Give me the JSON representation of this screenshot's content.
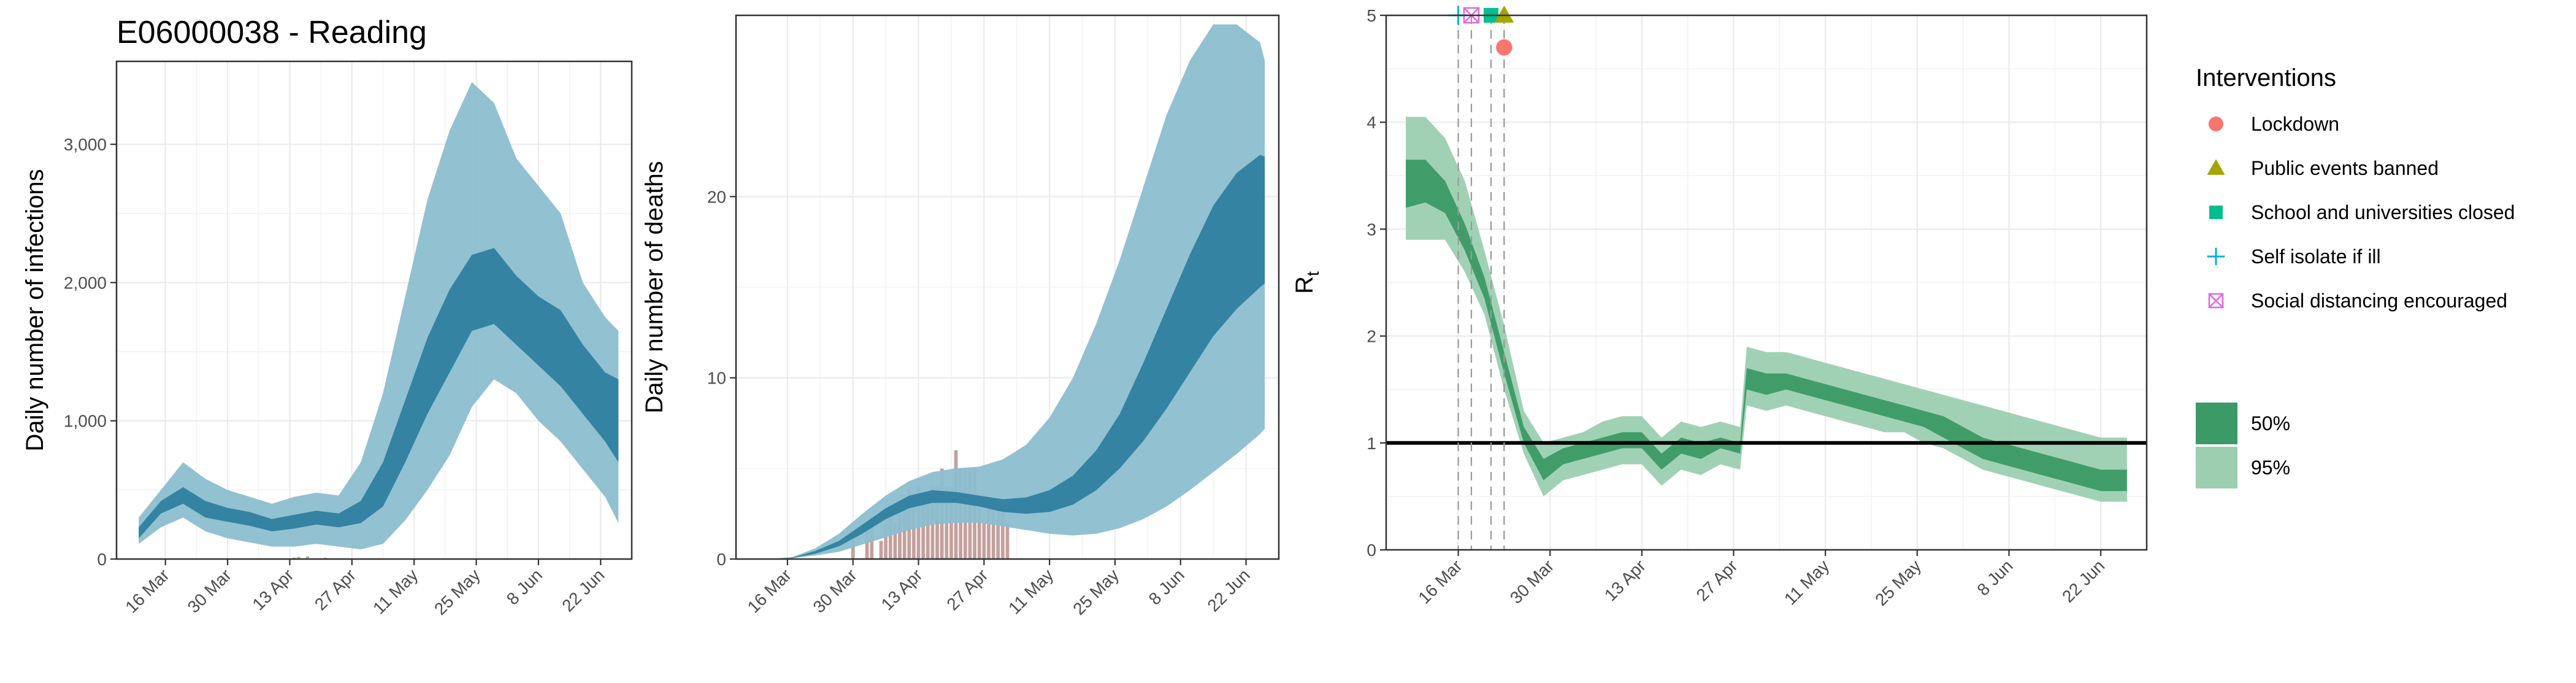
{
  "chart_data": [
    {
      "type": "area",
      "title": "E06000038 - Reading",
      "xlabel": "",
      "ylabel": "Daily number of infections",
      "ylim": [
        0,
        3600
      ],
      "yticks": [
        0,
        1000,
        2000,
        3000
      ],
      "ytick_labels": [
        "0",
        "1,000",
        "2,000",
        "3,000"
      ],
      "xticks": [
        "2020-03-16",
        "2020-03-30",
        "2020-04-13",
        "2020-04-27",
        "2020-05-11",
        "2020-05-25",
        "2020-06-08",
        "2020-06-22"
      ],
      "xtick_labels": [
        "16 Mar",
        "30 Mar",
        "13 Apr",
        "27 Apr",
        "11 May",
        "25 May",
        "8 Jun",
        "22 Jun"
      ],
      "xlim": [
        "2020-03-05",
        "2020-06-29"
      ],
      "grid": true,
      "band_colors": {
        "ci50": "#2f7fa0",
        "ci95": "#8cbecf"
      },
      "x": [
        "2020-03-10",
        "2020-03-15",
        "2020-03-20",
        "2020-03-25",
        "2020-03-30",
        "2020-04-04",
        "2020-04-09",
        "2020-04-14",
        "2020-04-19",
        "2020-04-24",
        "2020-04-29",
        "2020-05-04",
        "2020-05-09",
        "2020-05-14",
        "2020-05-19",
        "2020-05-24",
        "2020-05-29",
        "2020-06-03",
        "2020-06-08",
        "2020-06-13",
        "2020-06-18",
        "2020-06-23",
        "2020-06-26"
      ],
      "series": [
        {
          "band": "95%",
          "lower": [
            110,
            230,
            300,
            200,
            150,
            120,
            90,
            90,
            110,
            90,
            70,
            110,
            280,
            500,
            750,
            1100,
            1300,
            1200,
            1000,
            850,
            650,
            450,
            260
          ],
          "upper": [
            300,
            500,
            700,
            580,
            500,
            450,
            400,
            450,
            480,
            460,
            700,
            1200,
            1900,
            2600,
            3100,
            3450,
            3300,
            2900,
            2700,
            2500,
            2000,
            1750,
            1650
          ]
        },
        {
          "band": "50%",
          "lower": [
            150,
            330,
            400,
            300,
            270,
            240,
            200,
            220,
            250,
            230,
            260,
            380,
            700,
            1050,
            1350,
            1650,
            1700,
            1550,
            1400,
            1250,
            1050,
            850,
            700
          ],
          "upper": [
            230,
            420,
            520,
            420,
            370,
            340,
            290,
            320,
            350,
            330,
            420,
            700,
            1150,
            1600,
            1950,
            2200,
            2250,
            2050,
            1900,
            1800,
            1550,
            1350,
            1300
          ]
        }
      ],
      "bars": [
        {
          "x": "2020-04-14",
          "value": 10
        },
        {
          "x": "2020-04-15",
          "value": 15
        },
        {
          "x": "2020-04-17",
          "value": 20
        },
        {
          "x": "2020-04-21",
          "value": 10
        }
      ]
    },
    {
      "type": "area",
      "title": "",
      "xlabel": "",
      "ylabel": "Daily number of deaths",
      "ylim": [
        0,
        30
      ],
      "yticks": [
        0,
        10,
        20
      ],
      "ytick_labels": [
        "0",
        "10",
        "20"
      ],
      "xticks": [
        "2020-03-16",
        "2020-03-30",
        "2020-04-13",
        "2020-04-27",
        "2020-05-11",
        "2020-05-25",
        "2020-06-08",
        "2020-06-22"
      ],
      "xtick_labels": [
        "16 Mar",
        "30 Mar",
        "13 Apr",
        "27 Apr",
        "11 May",
        "25 May",
        "8 Jun",
        "22 Jun"
      ],
      "xlim": [
        "2020-03-05",
        "2020-06-29"
      ],
      "grid": true,
      "band_colors": {
        "ci50": "#2f7fa0",
        "ci95": "#8cbecf",
        "bars": "#c4a09d"
      },
      "x": [
        "2020-03-12",
        "2020-03-17",
        "2020-03-22",
        "2020-03-27",
        "2020-04-01",
        "2020-04-06",
        "2020-04-11",
        "2020-04-16",
        "2020-04-21",
        "2020-04-26",
        "2020-05-01",
        "2020-05-06",
        "2020-05-11",
        "2020-05-16",
        "2020-05-21",
        "2020-05-26",
        "2020-05-31",
        "2020-06-05",
        "2020-06-10",
        "2020-06-15",
        "2020-06-20",
        "2020-06-25",
        "2020-06-26"
      ],
      "series": [
        {
          "band": "95%",
          "lower": [
            0,
            0.05,
            0.2,
            0.4,
            0.8,
            1.2,
            1.6,
            1.9,
            2.0,
            2.0,
            1.8,
            1.6,
            1.4,
            1.3,
            1.4,
            1.7,
            2.2,
            2.9,
            3.8,
            4.8,
            5.8,
            6.9,
            7.2
          ],
          "upper": [
            0,
            0.1,
            0.6,
            1.4,
            2.5,
            3.5,
            4.3,
            4.8,
            5.0,
            5.1,
            5.5,
            6.3,
            7.8,
            10.0,
            13.0,
            16.5,
            20.5,
            24.5,
            27.5,
            29.5,
            29.5,
            28.5,
            27.5
          ]
        },
        {
          "band": "50%",
          "lower": [
            0,
            0.05,
            0.3,
            0.7,
            1.4,
            2.2,
            2.8,
            3.1,
            3.1,
            2.9,
            2.6,
            2.5,
            2.6,
            3.0,
            3.8,
            5.0,
            6.5,
            8.3,
            10.3,
            12.3,
            13.8,
            15.0,
            15.2
          ],
          "upper": [
            0,
            0.08,
            0.45,
            1.0,
            1.9,
            2.8,
            3.5,
            3.8,
            3.7,
            3.5,
            3.3,
            3.4,
            3.8,
            4.6,
            6.0,
            8.0,
            10.8,
            13.8,
            16.8,
            19.5,
            21.3,
            22.3,
            22.2
          ]
        }
      ],
      "bars": [
        {
          "x": "2020-03-30",
          "value": 1
        },
        {
          "x": "2020-04-02",
          "value": 2
        },
        {
          "x": "2020-04-03",
          "value": 2
        },
        {
          "x": "2020-04-05",
          "value": 1
        },
        {
          "x": "2020-04-06",
          "value": 2
        },
        {
          "x": "2020-04-07",
          "value": 3
        },
        {
          "x": "2020-04-08",
          "value": 2
        },
        {
          "x": "2020-04-09",
          "value": 3
        },
        {
          "x": "2020-04-10",
          "value": 3
        },
        {
          "x": "2020-04-11",
          "value": 4
        },
        {
          "x": "2020-04-12",
          "value": 3
        },
        {
          "x": "2020-04-13",
          "value": 4
        },
        {
          "x": "2020-04-14",
          "value": 3
        },
        {
          "x": "2020-04-15",
          "value": 3
        },
        {
          "x": "2020-04-16",
          "value": 4
        },
        {
          "x": "2020-04-17",
          "value": 4
        },
        {
          "x": "2020-04-18",
          "value": 5
        },
        {
          "x": "2020-04-19",
          "value": 4
        },
        {
          "x": "2020-04-20",
          "value": 4
        },
        {
          "x": "2020-04-21",
          "value": 6
        },
        {
          "x": "2020-04-22",
          "value": 5
        },
        {
          "x": "2020-04-23",
          "value": 5
        },
        {
          "x": "2020-04-24",
          "value": 5
        },
        {
          "x": "2020-04-25",
          "value": 5
        },
        {
          "x": "2020-04-26",
          "value": 3
        },
        {
          "x": "2020-04-27",
          "value": 2
        },
        {
          "x": "2020-04-28",
          "value": 3
        },
        {
          "x": "2020-04-29",
          "value": 3
        },
        {
          "x": "2020-04-30",
          "value": 3
        },
        {
          "x": "2020-05-01",
          "value": 3
        },
        {
          "x": "2020-05-02",
          "value": 2
        }
      ]
    },
    {
      "type": "area",
      "title": "",
      "xlabel": "",
      "ylabel": "R",
      "ylabel_subscript": "t",
      "ylim": [
        0,
        5
      ],
      "yticks": [
        0,
        1,
        2,
        3,
        4,
        5
      ],
      "ytick_labels": [
        "0",
        "1",
        "2",
        "3",
        "4",
        "5"
      ],
      "xticks": [
        "2020-03-16",
        "2020-03-30",
        "2020-04-13",
        "2020-04-27",
        "2020-05-11",
        "2020-05-25",
        "2020-06-08",
        "2020-06-22"
      ],
      "xtick_labels": [
        "16 Mar",
        "30 Mar",
        "13 Apr",
        "27 Apr",
        "11 May",
        "25 May",
        "8 Jun",
        "22 Jun"
      ],
      "xlim": [
        "2020-03-05",
        "2020-06-29"
      ],
      "grid": true,
      "reference_line": 1,
      "band_colors": {
        "ci50": "#3b9a66",
        "ci95": "#9ccfb0"
      },
      "x": [
        "2020-03-08",
        "2020-03-11",
        "2020-03-14",
        "2020-03-17",
        "2020-03-20",
        "2020-03-23",
        "2020-03-26",
        "2020-03-29",
        "2020-04-01",
        "2020-04-04",
        "2020-04-07",
        "2020-04-10",
        "2020-04-13",
        "2020-04-16",
        "2020-04-19",
        "2020-04-22",
        "2020-04-25",
        "2020-04-28",
        "2020-04-29",
        "2020-05-02",
        "2020-05-05",
        "2020-05-08",
        "2020-05-11",
        "2020-05-14",
        "2020-05-17",
        "2020-05-20",
        "2020-05-23",
        "2020-05-26",
        "2020-05-29",
        "2020-06-01",
        "2020-06-04",
        "2020-06-07",
        "2020-06-10",
        "2020-06-13",
        "2020-06-16",
        "2020-06-19",
        "2020-06-22",
        "2020-06-26"
      ],
      "series": [
        {
          "band": "95%",
          "lower": [
            2.9,
            2.9,
            2.9,
            2.6,
            2.2,
            1.5,
            0.9,
            0.5,
            0.65,
            0.7,
            0.75,
            0.8,
            0.8,
            0.6,
            0.75,
            0.7,
            0.8,
            0.75,
            1.35,
            1.3,
            1.35,
            1.3,
            1.25,
            1.2,
            1.15,
            1.1,
            1.1,
            1.0,
            0.95,
            0.85,
            0.75,
            0.7,
            0.65,
            0.6,
            0.55,
            0.5,
            0.45,
            0.45
          ],
          "upper": [
            4.05,
            4.05,
            3.85,
            3.45,
            2.8,
            2.1,
            1.3,
            1.0,
            1.05,
            1.1,
            1.2,
            1.25,
            1.25,
            1.05,
            1.2,
            1.15,
            1.2,
            1.15,
            1.9,
            1.85,
            1.85,
            1.8,
            1.75,
            1.7,
            1.65,
            1.6,
            1.55,
            1.5,
            1.45,
            1.4,
            1.35,
            1.3,
            1.25,
            1.2,
            1.15,
            1.1,
            1.05,
            1.05
          ]
        },
        {
          "band": "50%",
          "lower": [
            3.2,
            3.25,
            3.15,
            2.8,
            2.35,
            1.65,
            1.0,
            0.65,
            0.8,
            0.85,
            0.9,
            0.95,
            0.95,
            0.75,
            0.9,
            0.85,
            0.95,
            0.9,
            1.5,
            1.45,
            1.5,
            1.45,
            1.4,
            1.35,
            1.3,
            1.25,
            1.2,
            1.15,
            1.05,
            0.95,
            0.85,
            0.8,
            0.75,
            0.7,
            0.65,
            0.6,
            0.55,
            0.55
          ],
          "upper": [
            3.65,
            3.65,
            3.45,
            3.05,
            2.55,
            1.85,
            1.15,
            0.85,
            0.95,
            1.0,
            1.05,
            1.1,
            1.1,
            0.9,
            1.05,
            1.0,
            1.05,
            1.0,
            1.7,
            1.65,
            1.65,
            1.6,
            1.55,
            1.5,
            1.45,
            1.4,
            1.35,
            1.3,
            1.25,
            1.15,
            1.05,
            1.0,
            0.95,
            0.9,
            0.85,
            0.8,
            0.75,
            0.75
          ]
        }
      ],
      "interventions": [
        {
          "date": "2020-03-16",
          "name": "Self isolate if ill",
          "y": 5.0,
          "color": "#00b3e6",
          "shape": "plus"
        },
        {
          "date": "2020-03-18",
          "name": "Social distancing encouraged",
          "y": 5.0,
          "color": "#e066e6",
          "shape": "boxx"
        },
        {
          "date": "2020-03-21",
          "name": "School and universities closed",
          "y": 5.0,
          "color": "#00bf8c",
          "shape": "square"
        },
        {
          "date": "2020-03-23",
          "name": "Public events banned",
          "y": 5.0,
          "color": "#a3a500",
          "shape": "triangle"
        },
        {
          "date": "2020-03-23",
          "name": "Lockdown",
          "y": 4.7,
          "color": "#f8766d",
          "shape": "circle"
        }
      ]
    }
  ],
  "legend": {
    "title": "Interventions",
    "items": [
      {
        "label": "Lockdown",
        "shape": "circle",
        "color": "#f8766d"
      },
      {
        "label": "Public events banned",
        "shape": "triangle",
        "color": "#a3a500"
      },
      {
        "label": "School and universities closed",
        "shape": "square",
        "color": "#00bf8c"
      },
      {
        "label": "Self isolate if ill",
        "shape": "plus",
        "color": "#00b3e6"
      },
      {
        "label": "Social distancing encouraged",
        "shape": "boxx",
        "color": "#e066e6"
      }
    ],
    "ci_items": [
      {
        "label": "50%",
        "color": "#3b9a66"
      },
      {
        "label": "95%",
        "color": "#9ccfb0"
      }
    ]
  }
}
